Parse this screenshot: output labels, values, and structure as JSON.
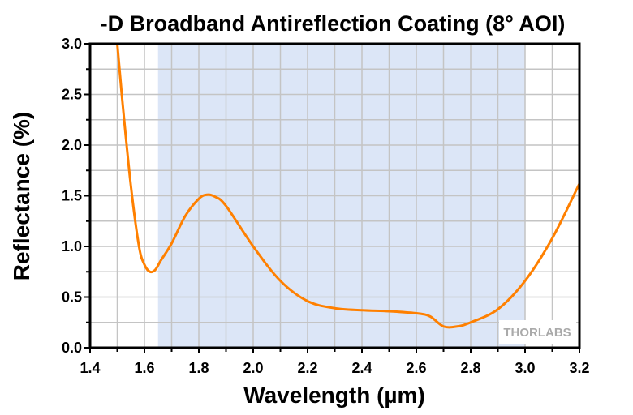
{
  "chart_data": {
    "type": "line",
    "title": "-D Broadband Antireflection Coating (8° AOI)",
    "xlabel": "Wavelength (µm)",
    "ylabel": "Reflectance (%)",
    "xlim": [
      1.4,
      3.2
    ],
    "ylim": [
      0,
      3.0
    ],
    "xticks": [
      "1.4",
      "1.6",
      "1.8",
      "2.0",
      "2.2",
      "2.4",
      "2.6",
      "2.8",
      "3.0",
      "3.2"
    ],
    "yticks": [
      "0.0",
      "0.5",
      "1.0",
      "1.5",
      "2.0",
      "2.5",
      "3.0"
    ],
    "grid": true,
    "shaded_band": [
      1.65,
      3.0
    ],
    "colors": {
      "line": "#ff8000",
      "band": "#dce6f7",
      "grid": "#c4c4c4"
    },
    "watermark": "THORLABS",
    "series": [
      {
        "x": [
          1.5,
          1.52,
          1.55,
          1.58,
          1.6,
          1.62,
          1.64,
          1.66,
          1.7,
          1.75,
          1.8,
          1.83,
          1.86,
          1.9,
          2.0,
          2.1,
          2.2,
          2.3,
          2.4,
          2.5,
          2.6,
          2.65,
          2.7,
          2.75,
          2.8,
          2.9,
          3.0,
          3.1,
          3.2
        ],
        "y": [
          3.0,
          2.4,
          1.6,
          1.0,
          0.82,
          0.75,
          0.77,
          0.86,
          1.03,
          1.3,
          1.47,
          1.51,
          1.49,
          1.4,
          1.0,
          0.66,
          0.46,
          0.39,
          0.37,
          0.36,
          0.34,
          0.31,
          0.21,
          0.21,
          0.25,
          0.38,
          0.66,
          1.08,
          1.62
        ]
      }
    ]
  }
}
